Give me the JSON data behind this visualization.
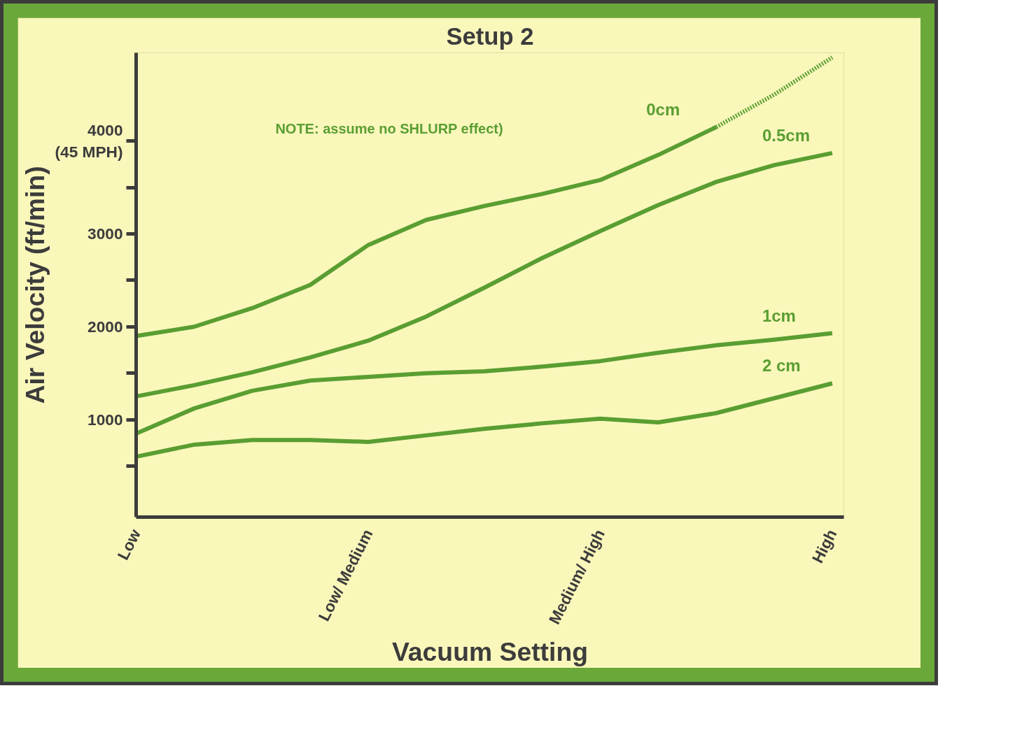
{
  "chart_data": {
    "type": "line",
    "title": "Setup 2",
    "xlabel": "Vacuum Setting",
    "ylabel": "Air Velocity (ft/min)",
    "annotations": [
      "NOTE: assume no SHLURP effect)"
    ],
    "categories": [
      "Low",
      null,
      null,
      null,
      "Low/ Medium",
      null,
      null,
      null,
      "Medium/ High",
      null,
      null,
      null,
      "High"
    ],
    "ylim": [
      -50,
      4950
    ],
    "yticks": [
      {
        "value": 500,
        "label": null
      },
      1000,
      {
        "value": 1500,
        "label": null
      },
      2000,
      {
        "value": 2500,
        "label": null
      },
      3000,
      {
        "value": 3500,
        "label": null
      },
      {
        "value": 4000,
        "label": "4000\n(45 MPH)"
      }
    ],
    "grid": false,
    "line_style": "solid",
    "series": [
      {
        "name": "0cm",
        "color": "#5a9e32",
        "values": [
          1900,
          2000,
          2200,
          2450,
          2880,
          3150,
          3300,
          3430,
          3580,
          3850,
          4150,
          null,
          null
        ]
      },
      {
        "color": "#5a9e32",
        "line_style": "dotted",
        "values": [
          null,
          null,
          null,
          null,
          null,
          null,
          null,
          null,
          null,
          null,
          4150,
          4500,
          4900
        ]
      },
      {
        "name": "0.5cm",
        "color": "#5a9e32",
        "values": [
          1250,
          1370,
          1510,
          1670,
          1850,
          2110,
          2420,
          2740,
          3030,
          3310,
          3560,
          3740,
          3870
        ]
      },
      {
        "name": "1cm",
        "color": "#5a9e32",
        "values": [
          850,
          1120,
          1310,
          1420,
          1460,
          1500,
          1520,
          1570,
          1630,
          1720,
          1800,
          1860,
          1930
        ]
      },
      {
        "name": "2 cm",
        "color": "#5a9e32",
        "values": [
          600,
          730,
          780,
          780,
          760,
          830,
          900,
          960,
          1010,
          970,
          1070,
          1230,
          1390
        ]
      }
    ]
  }
}
